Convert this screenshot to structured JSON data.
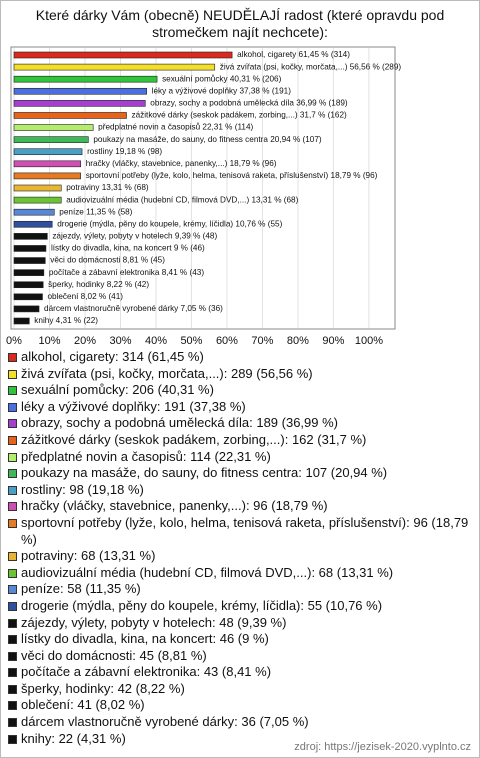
{
  "chart_data": {
    "type": "bar",
    "orientation": "horizontal",
    "title": "Které dárky Vám (obecně) NEUDĚLAJÍ radost (které opravdu pod stromečkem najít nechcete):",
    "values": [
      61.45,
      56.56,
      40.31,
      37.38,
      36.99,
      31.7,
      22.31,
      20.94,
      19.18,
      18.79,
      18.79,
      13.31,
      13.31,
      11.35,
      10.76,
      9.39,
      9,
      8.81,
      8.41,
      8.22,
      8.02,
      7.05,
      4.31
    ],
    "value_labels": [
      "alkohol, cigarety 61,45 % (314)",
      "živá zvířata (psi, kočky, morčata,...) 56,56 % (289)",
      "sexuální pomůcky 40,31 % (206)",
      "léky a výživové doplňky 37,38 % (191)",
      "obrazy, sochy a podobná umělecká díla 36,99 % (189)",
      "zážitkové dárky (seskok padákem, zorbing,...) 31,7 % (162)",
      "předplatné novin a časopisů 22,31 % (114)",
      "poukazy na masáže, do sauny, do fitness centra 20,94 % (107)",
      "rostliny 19,18 % (98)",
      "hračky (vláčky, stavebnice, panenky,...) 18,79 % (96)",
      "sportovní potřeby (lyže, kolo, helma, tenisová raketa, příslušenství) 18,79 % (96)",
      "potraviny 13,31 % (68)",
      "audiovizuální média (hudební CD, filmová DVD,...) 13,31 % (68)",
      "peníze 11,35 % (58)",
      "drogerie (mýdla, pěny do koupele, krémy, líčidla) 10,76 % (55)",
      "zájezdy, výlety, pobyty v hotelech 9,39 % (48)",
      "lístky do divadla, kina, na koncert 9 % (46)",
      "věci do domácnosti 8,81 % (45)",
      "počítače a zábavní elektronika 8,41 % (43)",
      "šperky, hodinky 8,22 % (42)",
      "oblečení 8,02 % (41)",
      "dárcem vlastnoručně vyrobené dárky 7,05 % (36)",
      "knihy 4,31 % (22)"
    ],
    "legend_labels": [
      "alkohol, cigarety: 314 (61,45 %)",
      "živá zvířata (psi, kočky, morčata,...): 289 (56,56 %)",
      "sexuální pomůcky: 206 (40,31 %)",
      "léky a výživové doplňky: 191 (37,38 %)",
      "obrazy, sochy a podobná umělecká díla: 189 (36,99 %)",
      "zážitkové dárky (seskok padákem, zorbing,...): 162 (31,7 %)",
      "předplatné novin a časopisů: 114 (22,31 %)",
      "poukazy na masáže, do sauny, do fitness centra: 107 (20,94 %)",
      "rostliny: 98 (19,18 %)",
      "hračky (vláčky, stavebnice, panenky,...): 96 (18,79 %)",
      "sportovní potřeby (lyže, kolo, helma, tenisová raketa, příslušenství): 96 (18,79 %)",
      "potraviny: 68 (13,31 %)",
      "audiovizuální média (hudební CD, filmová DVD,...): 68 (13,31 %)",
      "peníze: 58 (11,35 %)",
      "drogerie (mýdla, pěny do koupele, krémy, líčidla): 55 (10,76 %)",
      "zájezdy, výlety, pobyty v hotelech: 48 (9,39 %)",
      "lístky do divadla, kina, na koncert: 46 (9 %)",
      "věci do domácnosti: 45 (8,81 %)",
      "počítače a zábavní elektronika: 43 (8,41 %)",
      "šperky, hodinky: 42 (8,22 %)",
      "oblečení: 41 (8,02 %)",
      "dárcem vlastnoručně vyrobené dárky: 36 (7,05 %)",
      "knihy: 22 (4,31 %)"
    ],
    "colors": [
      "#d82a1e",
      "#f3de2c",
      "#2fc43a",
      "#4a6fe0",
      "#a63fd0",
      "#e8621a",
      "#b4ec6c",
      "#3fb85a",
      "#4a9fc6",
      "#cf4fb4",
      "#e87a22",
      "#e8b632",
      "#6cc434",
      "#5a86d6",
      "#2f4fa0",
      "#111111",
      "#111111",
      "#111111",
      "#111111",
      "#111111",
      "#111111",
      "#111111",
      "#111111"
    ],
    "xlim": [
      0,
      106.5
    ],
    "xticks": [
      {
        "value": 0,
        "label": "0%"
      },
      {
        "value": 10,
        "label": "10%"
      },
      {
        "value": 20,
        "label": "20%"
      },
      {
        "value": 30,
        "label": "30%"
      },
      {
        "value": 40,
        "label": "40%"
      },
      {
        "value": 50,
        "label": "50%"
      },
      {
        "value": 60,
        "label": "60%"
      },
      {
        "value": 70,
        "label": "70%"
      },
      {
        "value": 80,
        "label": "80%"
      },
      {
        "value": 90,
        "label": "90%"
      },
      {
        "value": 100,
        "label": "100%"
      }
    ],
    "grid": true,
    "source": "zdroj: https://jezisek-2020.vyplnto.cz"
  }
}
